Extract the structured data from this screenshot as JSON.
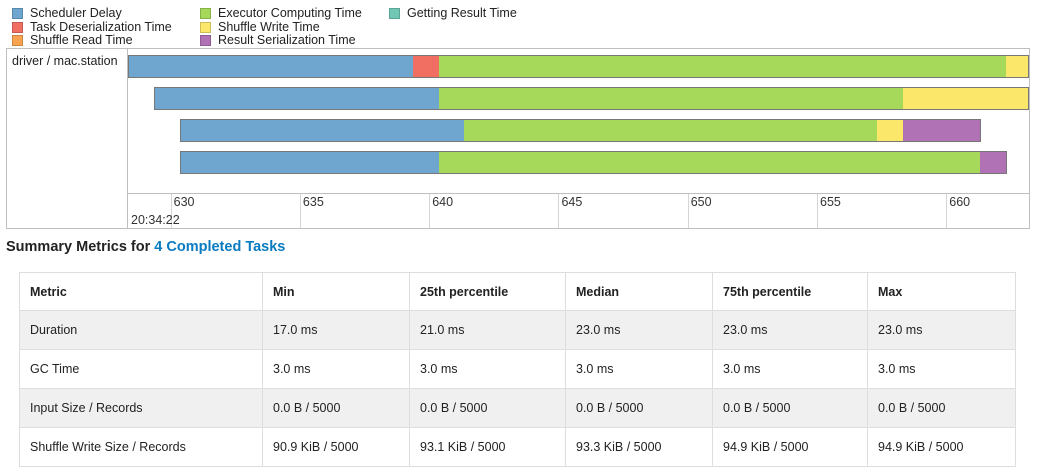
{
  "legend": [
    {
      "name": "Scheduler Delay",
      "color": "#6ea6cf"
    },
    {
      "name": "Task Deserialization Time",
      "color": "#f16f62"
    },
    {
      "name": "Shuffle Read Time",
      "color": "#f7a34f"
    },
    {
      "name": "Executor Computing Time",
      "color": "#a6d95a"
    },
    {
      "name": "Shuffle Write Time",
      "color": "#fbe86b"
    },
    {
      "name": "Result Serialization Time",
      "color": "#b072b4"
    },
    {
      "name": "Getting Result Time",
      "color": "#70c7b3"
    }
  ],
  "timeline": {
    "group": "driver / mac.station",
    "time_label": "20:34:22",
    "ticks": [
      "630",
      "635",
      "640",
      "645",
      "650",
      "655",
      "660"
    ],
    "tick_values": [
      630,
      635,
      640,
      645,
      650,
      655,
      660
    ],
    "x_range": [
      628.35,
      663.2
    ],
    "tasks": [
      {
        "start": 628.35,
        "segments": [
          {
            "c": "#6ea6cf",
            "d": 11.0
          },
          {
            "c": "#f16f62",
            "d": 1.0
          },
          {
            "c": "#a6d95a",
            "d": 22.0
          },
          {
            "c": "#fbe86b",
            "d": 0.85
          }
        ]
      },
      {
        "start": 629.35,
        "segments": [
          {
            "c": "#6ea6cf",
            "d": 11.0
          },
          {
            "c": "#a6d95a",
            "d": 18.0
          },
          {
            "c": "#fbe86b",
            "d": 4.85
          }
        ]
      },
      {
        "start": 630.35,
        "segments": [
          {
            "c": "#6ea6cf",
            "d": 11.0
          },
          {
            "c": "#a6d95a",
            "d": 16.0
          },
          {
            "c": "#fbe86b",
            "d": 1.0
          },
          {
            "c": "#b072b4",
            "d": 3.0
          }
        ]
      },
      {
        "start": 630.35,
        "segments": [
          {
            "c": "#6ea6cf",
            "d": 10.0
          },
          {
            "c": "#a6d95a",
            "d": 21.0
          },
          {
            "c": "#b072b4",
            "d": 1.0
          }
        ]
      }
    ]
  },
  "summary": {
    "title_prefix": "Summary Metrics for ",
    "title_link": "4 Completed Tasks",
    "columns": [
      "Metric",
      "Min",
      "25th percentile",
      "Median",
      "75th percentile",
      "Max"
    ],
    "rows": [
      [
        "Duration",
        "17.0 ms",
        "21.0 ms",
        "23.0 ms",
        "23.0 ms",
        "23.0 ms"
      ],
      [
        "GC Time",
        "3.0 ms",
        "3.0 ms",
        "3.0 ms",
        "3.0 ms",
        "3.0 ms"
      ],
      [
        "Input Size / Records",
        "0.0 B / 5000",
        "0.0 B / 5000",
        "0.0 B / 5000",
        "0.0 B / 5000",
        "0.0 B / 5000"
      ],
      [
        "Shuffle Write Size / Records",
        "90.9 KiB / 5000",
        "93.1 KiB / 5000",
        "93.3 KiB / 5000",
        "94.9 KiB / 5000",
        "94.9 KiB / 5000"
      ]
    ]
  }
}
